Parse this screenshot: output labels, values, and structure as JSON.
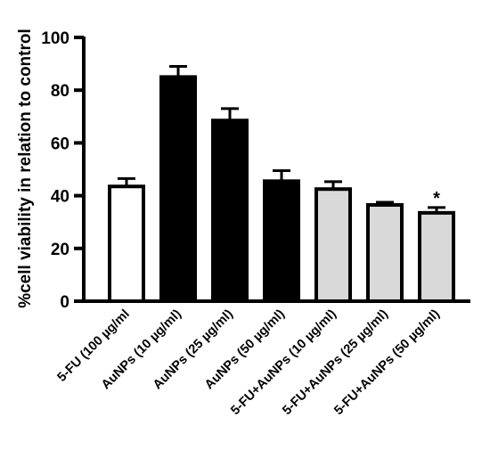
{
  "chart_data": {
    "type": "bar",
    "ylabel": "%cell viability in relation to control",
    "xlabel": "",
    "ylim": [
      0,
      100
    ],
    "yticks": [
      "0",
      "20",
      "40",
      "60",
      "80",
      "100"
    ],
    "categories": [
      "5-FU (100 µg/ml",
      "AuNPs (10 µg/ml)",
      "AuNPs (25 µg/ml)",
      "AuNPs (50 µg/ml)",
      "5-FU+AuNPs (10 µg/ml)",
      "5-FU+AuNPs (25 µg/ml)",
      "5-FU+AuNPs (50 µg/ml)"
    ],
    "values": [
      43.5,
      85,
      68.5,
      45.5,
      42.5,
      36.5,
      33.5
    ],
    "errors": [
      3,
      4,
      4.5,
      4,
      2.8,
      1,
      2
    ],
    "fill_colors": [
      "#ffffff",
      "#000000",
      "#000000",
      "#000000",
      "#d9d9d9",
      "#d9d9d9",
      "#d9d9d9"
    ],
    "annotations": [
      {
        "category_index": 6,
        "text": "*"
      }
    ],
    "grid": false,
    "legend": "none"
  }
}
